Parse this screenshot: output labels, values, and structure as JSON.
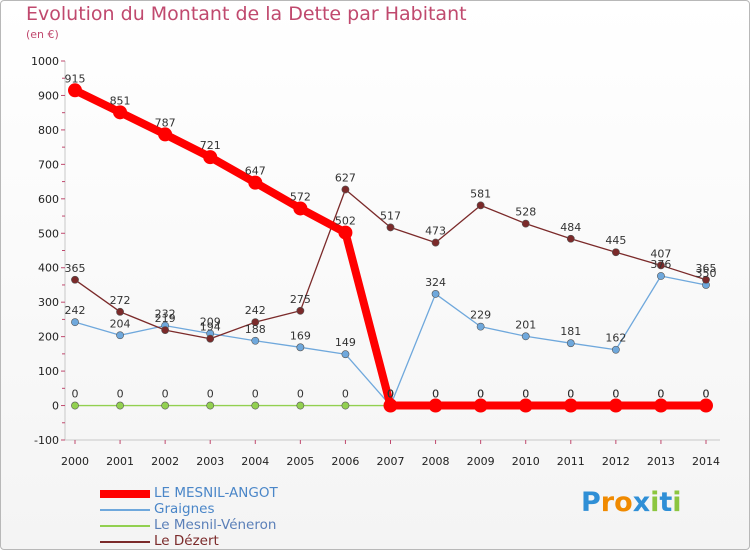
{
  "header": {
    "title": "Evolution du Montant de la Dette par Habitant",
    "subtitle": "(en €)"
  },
  "logo": {
    "text": "Proxiti",
    "letters": [
      {
        "ch": "P",
        "color": "#2f8fd6"
      },
      {
        "ch": "r",
        "color": "#f08a00"
      },
      {
        "ch": "o",
        "color": "#f08a00"
      },
      {
        "ch": "x",
        "color": "#2f8fd6"
      },
      {
        "ch": "i",
        "color": "#8cc63f"
      },
      {
        "ch": "t",
        "color": "#2f8fd6"
      },
      {
        "ch": "i",
        "color": "#8cc63f"
      }
    ]
  },
  "chart_data": {
    "type": "line",
    "title": "Evolution du Montant de la Dette par Habitant",
    "subtitle": "(en €)",
    "x": [
      "2000",
      "2001",
      "2002",
      "2003",
      "2004",
      "2005",
      "2006",
      "2007",
      "2008",
      "2009",
      "2010",
      "2011",
      "2012",
      "2013",
      "2014"
    ],
    "yticks": [
      "-100",
      "0",
      "100",
      "200",
      "300",
      "400",
      "500",
      "600",
      "700",
      "800",
      "900",
      "1000"
    ],
    "ylim": [
      -100,
      1000
    ],
    "grid": false,
    "legend_position": "bottom-left",
    "series": [
      {
        "name": "LE MESNIL-ANGOT",
        "color": "#ff0000",
        "emphasis": true,
        "values": [
          915,
          851,
          787,
          721,
          647,
          572,
          502,
          0,
          0,
          0,
          0,
          0,
          0,
          0,
          0
        ],
        "labels": [
          "915",
          "851",
          "787",
          "721",
          "647",
          "572",
          "502",
          "0",
          "0",
          "0",
          "0",
          "0",
          "0",
          "0",
          "0"
        ]
      },
      {
        "name": "Graignes",
        "color": "#6fa8dc",
        "emphasis": false,
        "values": [
          242,
          204,
          232,
          209,
          188,
          169,
          149,
          0,
          324,
          229,
          201,
          181,
          162,
          376,
          350
        ],
        "labels": [
          "242",
          "204",
          "232",
          "209",
          "188",
          "169",
          "149",
          "0",
          "324",
          "229",
          "201",
          "181",
          "162",
          "376",
          "350"
        ]
      },
      {
        "name": "Le Mesnil-Véneron",
        "color": "#92d050",
        "emphasis": false,
        "values": [
          0,
          0,
          0,
          0,
          0,
          0,
          0,
          0,
          0,
          0,
          0,
          0,
          0,
          0,
          0
        ],
        "labels": [
          "0",
          "0",
          "0",
          "0",
          "0",
          "0",
          "0",
          "0",
          "0",
          "0",
          "0",
          "0",
          "0",
          "0",
          "0"
        ]
      },
      {
        "name": "Le Dézert",
        "color": "#7b2a2a",
        "emphasis": false,
        "values": [
          365,
          272,
          219,
          194,
          242,
          275,
          627,
          517,
          473,
          581,
          528,
          484,
          445,
          407,
          365
        ],
        "labels": [
          "365",
          "272",
          "219",
          "194",
          "242",
          "275",
          "627",
          "517",
          "473",
          "581",
          "528",
          "484",
          "445",
          "407",
          "365"
        ]
      }
    ]
  }
}
